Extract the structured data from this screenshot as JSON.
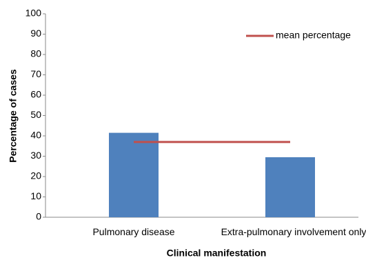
{
  "chart_data": {
    "type": "bar",
    "x_label": "Clinical manifestation",
    "y_label": "Percentage of cases",
    "categories": [
      "Pulmonary disease",
      "Extra-pulmonary involvement only"
    ],
    "values": [
      41.5,
      29.5
    ],
    "color": "#4f81bd",
    "series": [
      {
        "name": "mean percentage",
        "type": "line",
        "color": "#c0504d",
        "values": [
          37,
          37
        ]
      }
    ],
    "ylim": [
      0,
      100
    ],
    "yticks": [
      0,
      10,
      20,
      30,
      40,
      50,
      60,
      70,
      80,
      90,
      100
    ],
    "grid": false,
    "legend": "top-right"
  }
}
